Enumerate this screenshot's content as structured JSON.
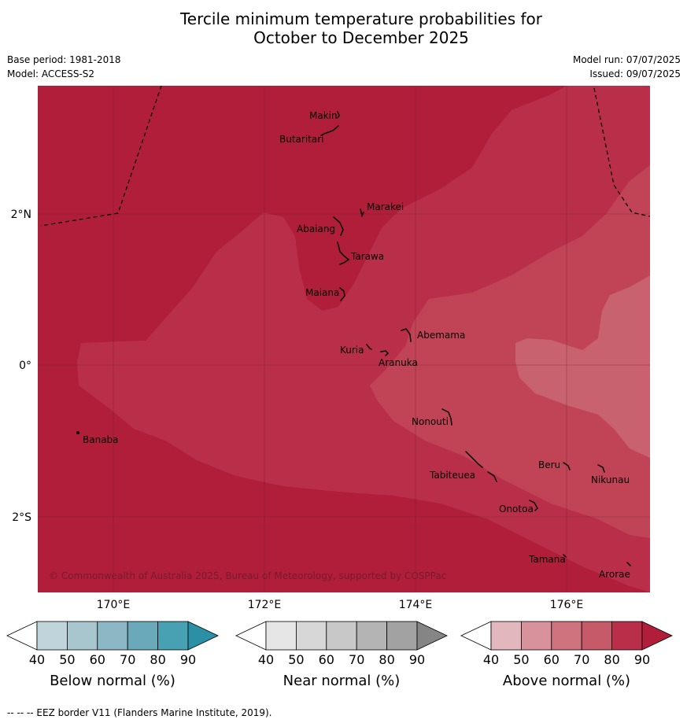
{
  "title_line1": "Tercile minimum temperature probabilities for",
  "title_line2": "October to December 2025",
  "base_period": "Base period: 1981-2018",
  "model": "Model: ACCESS-S2",
  "model_run": "Model run: 07/07/2025",
  "issued": "Issued: 09/07/2025",
  "lat_labels": [
    "2°N",
    "0°",
    "2°S"
  ],
  "lon_labels": [
    "170°E",
    "172°E",
    "174°E",
    "176°E"
  ],
  "copyright": "© Commonwealth of Australia 2025, Bureau of Meteorology, supported by COSPPac",
  "places": [
    "Makin",
    "Butaritari",
    "Marakei",
    "Abaiang",
    "Tarawa",
    "Maiana",
    "Abemama",
    "Kuria",
    "Aranuka",
    "Banaba",
    "Nonouti",
    "Beru",
    "Tabiteuea",
    "Nikunau",
    "Onotoa",
    "Tamana",
    "Arorae"
  ],
  "legends": [
    {
      "title": "Below normal (%)",
      "ticks": [
        "40",
        "50",
        "60",
        "70",
        "80",
        "90"
      ],
      "colors": [
        "#ffffff",
        "#bfd4db",
        "#a7c6ce",
        "#8cb7c4",
        "#6aa9b9",
        "#47a1b2",
        "#2b8fa6"
      ]
    },
    {
      "title": "Near normal (%)",
      "ticks": [
        "40",
        "50",
        "60",
        "70",
        "80",
        "90"
      ],
      "colors": [
        "#ffffff",
        "#e6e6e6",
        "#d7d7d7",
        "#c8c8c8",
        "#b4b4b4",
        "#a2a2a2",
        "#858585"
      ]
    },
    {
      "title": "Above normal (%)",
      "ticks": [
        "40",
        "50",
        "60",
        "70",
        "80",
        "90"
      ],
      "colors": [
        "#ffffff",
        "#e2b7be",
        "#d8929b",
        "#cf737e",
        "#c65a68",
        "#b92f4a",
        "#b01e3a"
      ]
    }
  ],
  "map_colors": {
    "level_90": "#b01e3a",
    "level_80": "#b92f4a",
    "level_70": "#c04455",
    "level_60": "#c7626e"
  },
  "footnote": "-- -- -- EEZ border V11 (Flanders Marine Institute, 2019)."
}
